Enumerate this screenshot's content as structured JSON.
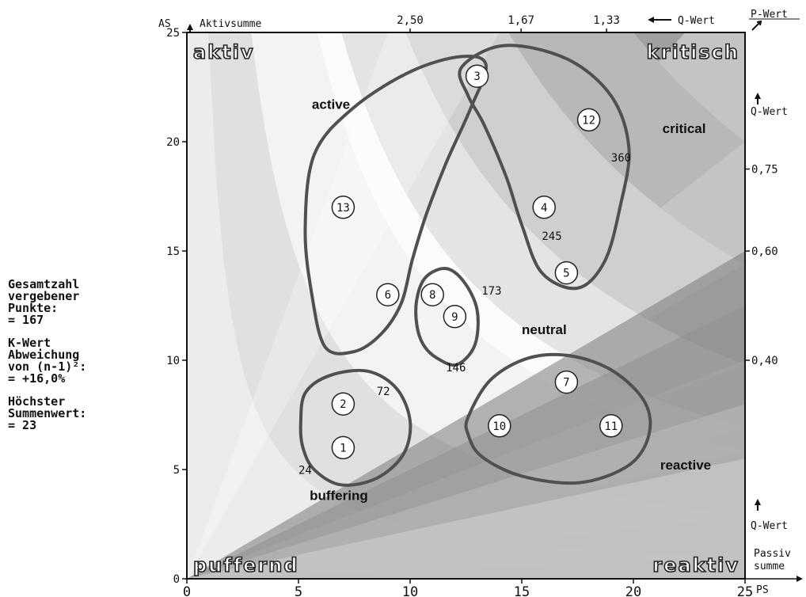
{
  "chart_data": {
    "type": "scatter",
    "xlabel_short": "PS",
    "xlabel": [
      "Passiv",
      "summe"
    ],
    "ylabel_short": "AS",
    "ylabel": "Aktivsumme",
    "xlim": [
      0,
      25
    ],
    "ylim": [
      0,
      25
    ],
    "x_ticks": [
      0,
      5,
      10,
      15,
      20,
      25
    ],
    "y_ticks": [
      0,
      5,
      10,
      15,
      20,
      25
    ],
    "q_label": "Q-Wert",
    "p_label": "P-Wert",
    "top_q_ticks": [
      {
        "value": 2.5,
        "label": "2,50"
      },
      {
        "value": 1.67,
        "label": "1,67"
      },
      {
        "value": 1.33,
        "label": "1,33"
      }
    ],
    "right_q_ticks": [
      {
        "value": 0.75,
        "label": "0,75"
      },
      {
        "value": 0.6,
        "label": "0,60"
      },
      {
        "value": 0.4,
        "label": "0,40"
      }
    ],
    "quadrant_labels": {
      "top_left": "aktiv",
      "top_right": "kritisch",
      "bottom_left": "puffernd",
      "bottom_right": "reaktiv"
    },
    "points": [
      {
        "id": "1",
        "x": 7,
        "y": 6
      },
      {
        "id": "2",
        "x": 7,
        "y": 8
      },
      {
        "id": "3",
        "x": 13,
        "y": 23
      },
      {
        "id": "4",
        "x": 16,
        "y": 17
      },
      {
        "id": "5",
        "x": 17,
        "y": 14
      },
      {
        "id": "6",
        "x": 9,
        "y": 13
      },
      {
        "id": "7",
        "x": 17,
        "y": 9
      },
      {
        "id": "8",
        "x": 11,
        "y": 13
      },
      {
        "id": "9",
        "x": 12,
        "y": 12
      },
      {
        "id": "10",
        "x": 14,
        "y": 7
      },
      {
        "id": "11",
        "x": 19,
        "y": 7
      },
      {
        "id": "12",
        "x": 18,
        "y": 21
      },
      {
        "id": "13",
        "x": 7,
        "y": 17
      }
    ],
    "product_labels": [
      {
        "text": "24",
        "x": 5.0,
        "y": 4.8
      },
      {
        "text": "72",
        "x": 8.5,
        "y": 8.4
      },
      {
        "text": "146",
        "x": 11.6,
        "y": 9.5
      },
      {
        "text": "173",
        "x": 13.2,
        "y": 13.0
      },
      {
        "text": "245",
        "x": 15.9,
        "y": 15.5
      },
      {
        "text": "360",
        "x": 19.0,
        "y": 19.1
      }
    ],
    "cluster_labels": [
      {
        "text": "active",
        "x": 5.6,
        "y": 21.5
      },
      {
        "text": "critical",
        "x": 21.3,
        "y": 20.4
      },
      {
        "text": "neutral",
        "x": 15.0,
        "y": 11.2
      },
      {
        "text": "buffering",
        "x": 5.5,
        "y": 3.6
      },
      {
        "text": "reactive",
        "x": 21.2,
        "y": 5.0
      }
    ],
    "bands": [
      {
        "k": 24,
        "color": "#ececec"
      },
      {
        "k": 72,
        "color": "#e0e0e0"
      },
      {
        "k": 146,
        "color": "#f3f3f3"
      },
      {
        "k": 173,
        "color": "#fbfbfb"
      },
      {
        "k": 245,
        "color": "#e4e4e4"
      },
      {
        "k": 360,
        "color": "#cfcfcf"
      },
      {
        "k": 500,
        "color": "#b8b8b8"
      },
      {
        "k": 700,
        "color": "#a0a0a0"
      }
    ],
    "base_color": "#c4c4c4",
    "q_rays": [
      {
        "q": 0.22,
        "color": "#d2d2d2"
      },
      {
        "q": 0.32,
        "color": "#bcbcbc"
      },
      {
        "q": 0.4,
        "color": "#a6a6a6"
      },
      {
        "q": 0.5,
        "color": "#909090"
      },
      {
        "q": 0.6,
        "color": "#7a7a7a"
      }
    ],
    "outline_color": "#505050"
  },
  "sidebar": {
    "total_points": "Gesamtzahl\nvergebener\nPunkte:\n= 167",
    "k_value": "K-Wert\nAbweichung\nvon (n-1)²:\n= +16,0%",
    "max_sum": "Höchster\nSummenwert:\n= 23"
  }
}
